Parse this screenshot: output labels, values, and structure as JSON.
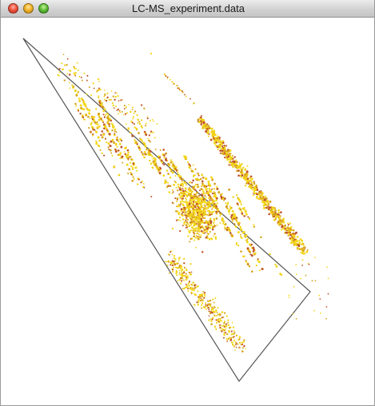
{
  "window": {
    "title": "LC-MS_experiment.data"
  },
  "controls": {
    "close": "close-icon",
    "minimize": "minimize-icon",
    "zoom": "zoom-icon"
  },
  "colors": {
    "point_primary": "#f2d51a",
    "point_secondary": "#d8a21c",
    "point_accent": "#c0532a",
    "outline": "#555555"
  }
}
